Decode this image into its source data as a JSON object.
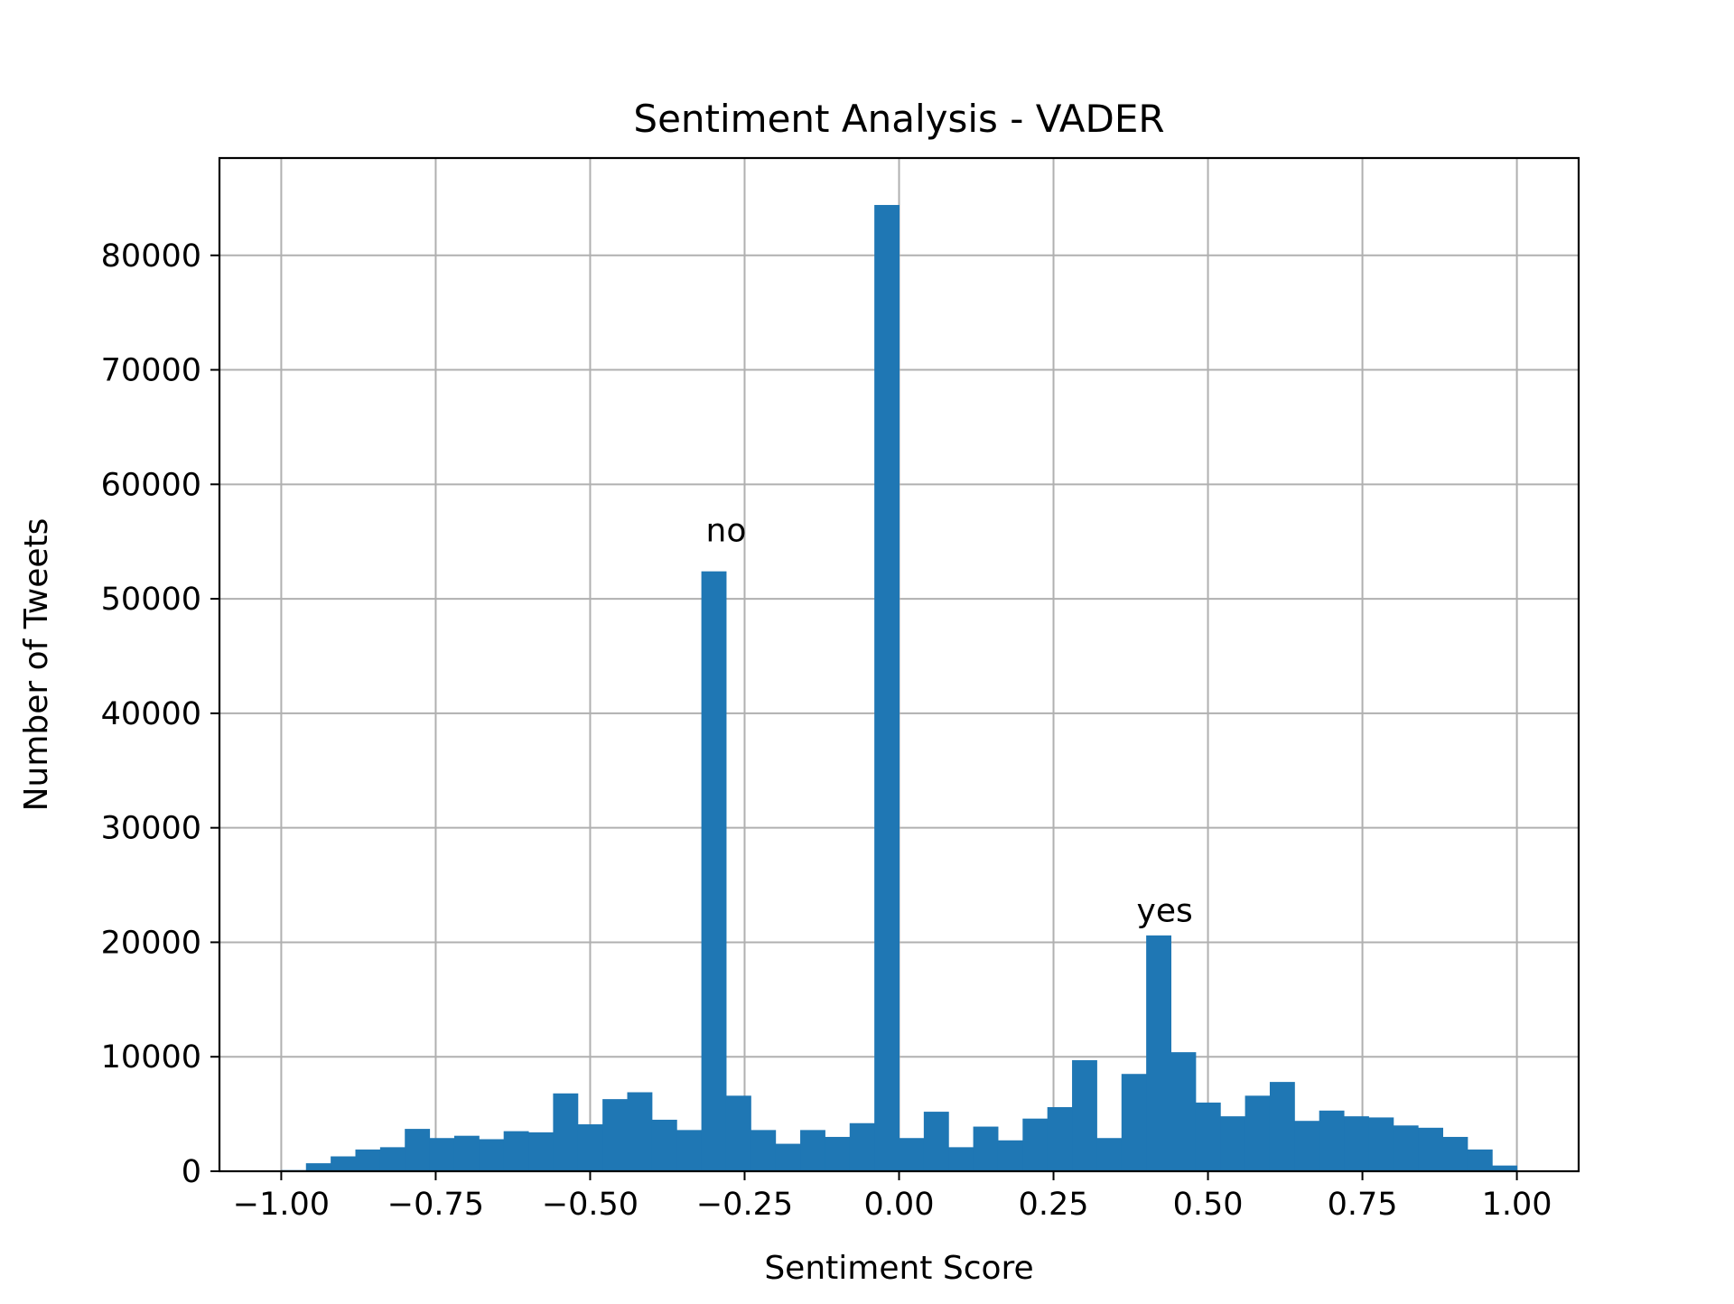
{
  "chart_data": {
    "type": "bar",
    "title": "Sentiment Analysis - VADER",
    "xlabel": "Sentiment Score",
    "ylabel": "Number of Tweets",
    "xlim": [
      -1.1,
      1.1
    ],
    "ylim": [
      0,
      88500
    ],
    "grid": true,
    "bar_color": "#1f77b4",
    "x_ticks": [
      {
        "value": -1.0,
        "label": "−1.00"
      },
      {
        "value": -0.75,
        "label": "−0.75"
      },
      {
        "value": -0.5,
        "label": "−0.50"
      },
      {
        "value": -0.25,
        "label": "−0.25"
      },
      {
        "value": 0.0,
        "label": "0.00"
      },
      {
        "value": 0.25,
        "label": "0.25"
      },
      {
        "value": 0.5,
        "label": "0.50"
      },
      {
        "value": 0.75,
        "label": "0.75"
      },
      {
        "value": 1.0,
        "label": "1.00"
      }
    ],
    "y_ticks": [
      {
        "value": 0,
        "label": "0"
      },
      {
        "value": 10000,
        "label": "10000"
      },
      {
        "value": 20000,
        "label": "20000"
      },
      {
        "value": 30000,
        "label": "30000"
      },
      {
        "value": 40000,
        "label": "40000"
      },
      {
        "value": 50000,
        "label": "50000"
      },
      {
        "value": 60000,
        "label": "60000"
      },
      {
        "value": 70000,
        "label": "70000"
      },
      {
        "value": 80000,
        "label": "80000"
      }
    ],
    "bins": {
      "start": -1.0,
      "end": 1.0,
      "counts": [
        100,
        700,
        1300,
        1900,
        2100,
        3700,
        2900,
        3100,
        2800,
        3500,
        3400,
        6800,
        4100,
        6300,
        6900,
        4500,
        3600,
        52400,
        6600,
        3600,
        2400,
        3600,
        3000,
        4200,
        84400,
        2900,
        5200,
        2100,
        3900,
        2700,
        4600,
        5600,
        9700,
        2900,
        8500,
        20600,
        10400,
        6000,
        4800,
        6600,
        7800,
        4400,
        5300,
        4800,
        4700,
        4000,
        3800,
        3000,
        1900,
        500
      ]
    },
    "annotations": [
      {
        "text": "no",
        "x": -0.28,
        "y": 55000
      },
      {
        "text": "yes",
        "x": 0.43,
        "y": 21800
      }
    ]
  }
}
